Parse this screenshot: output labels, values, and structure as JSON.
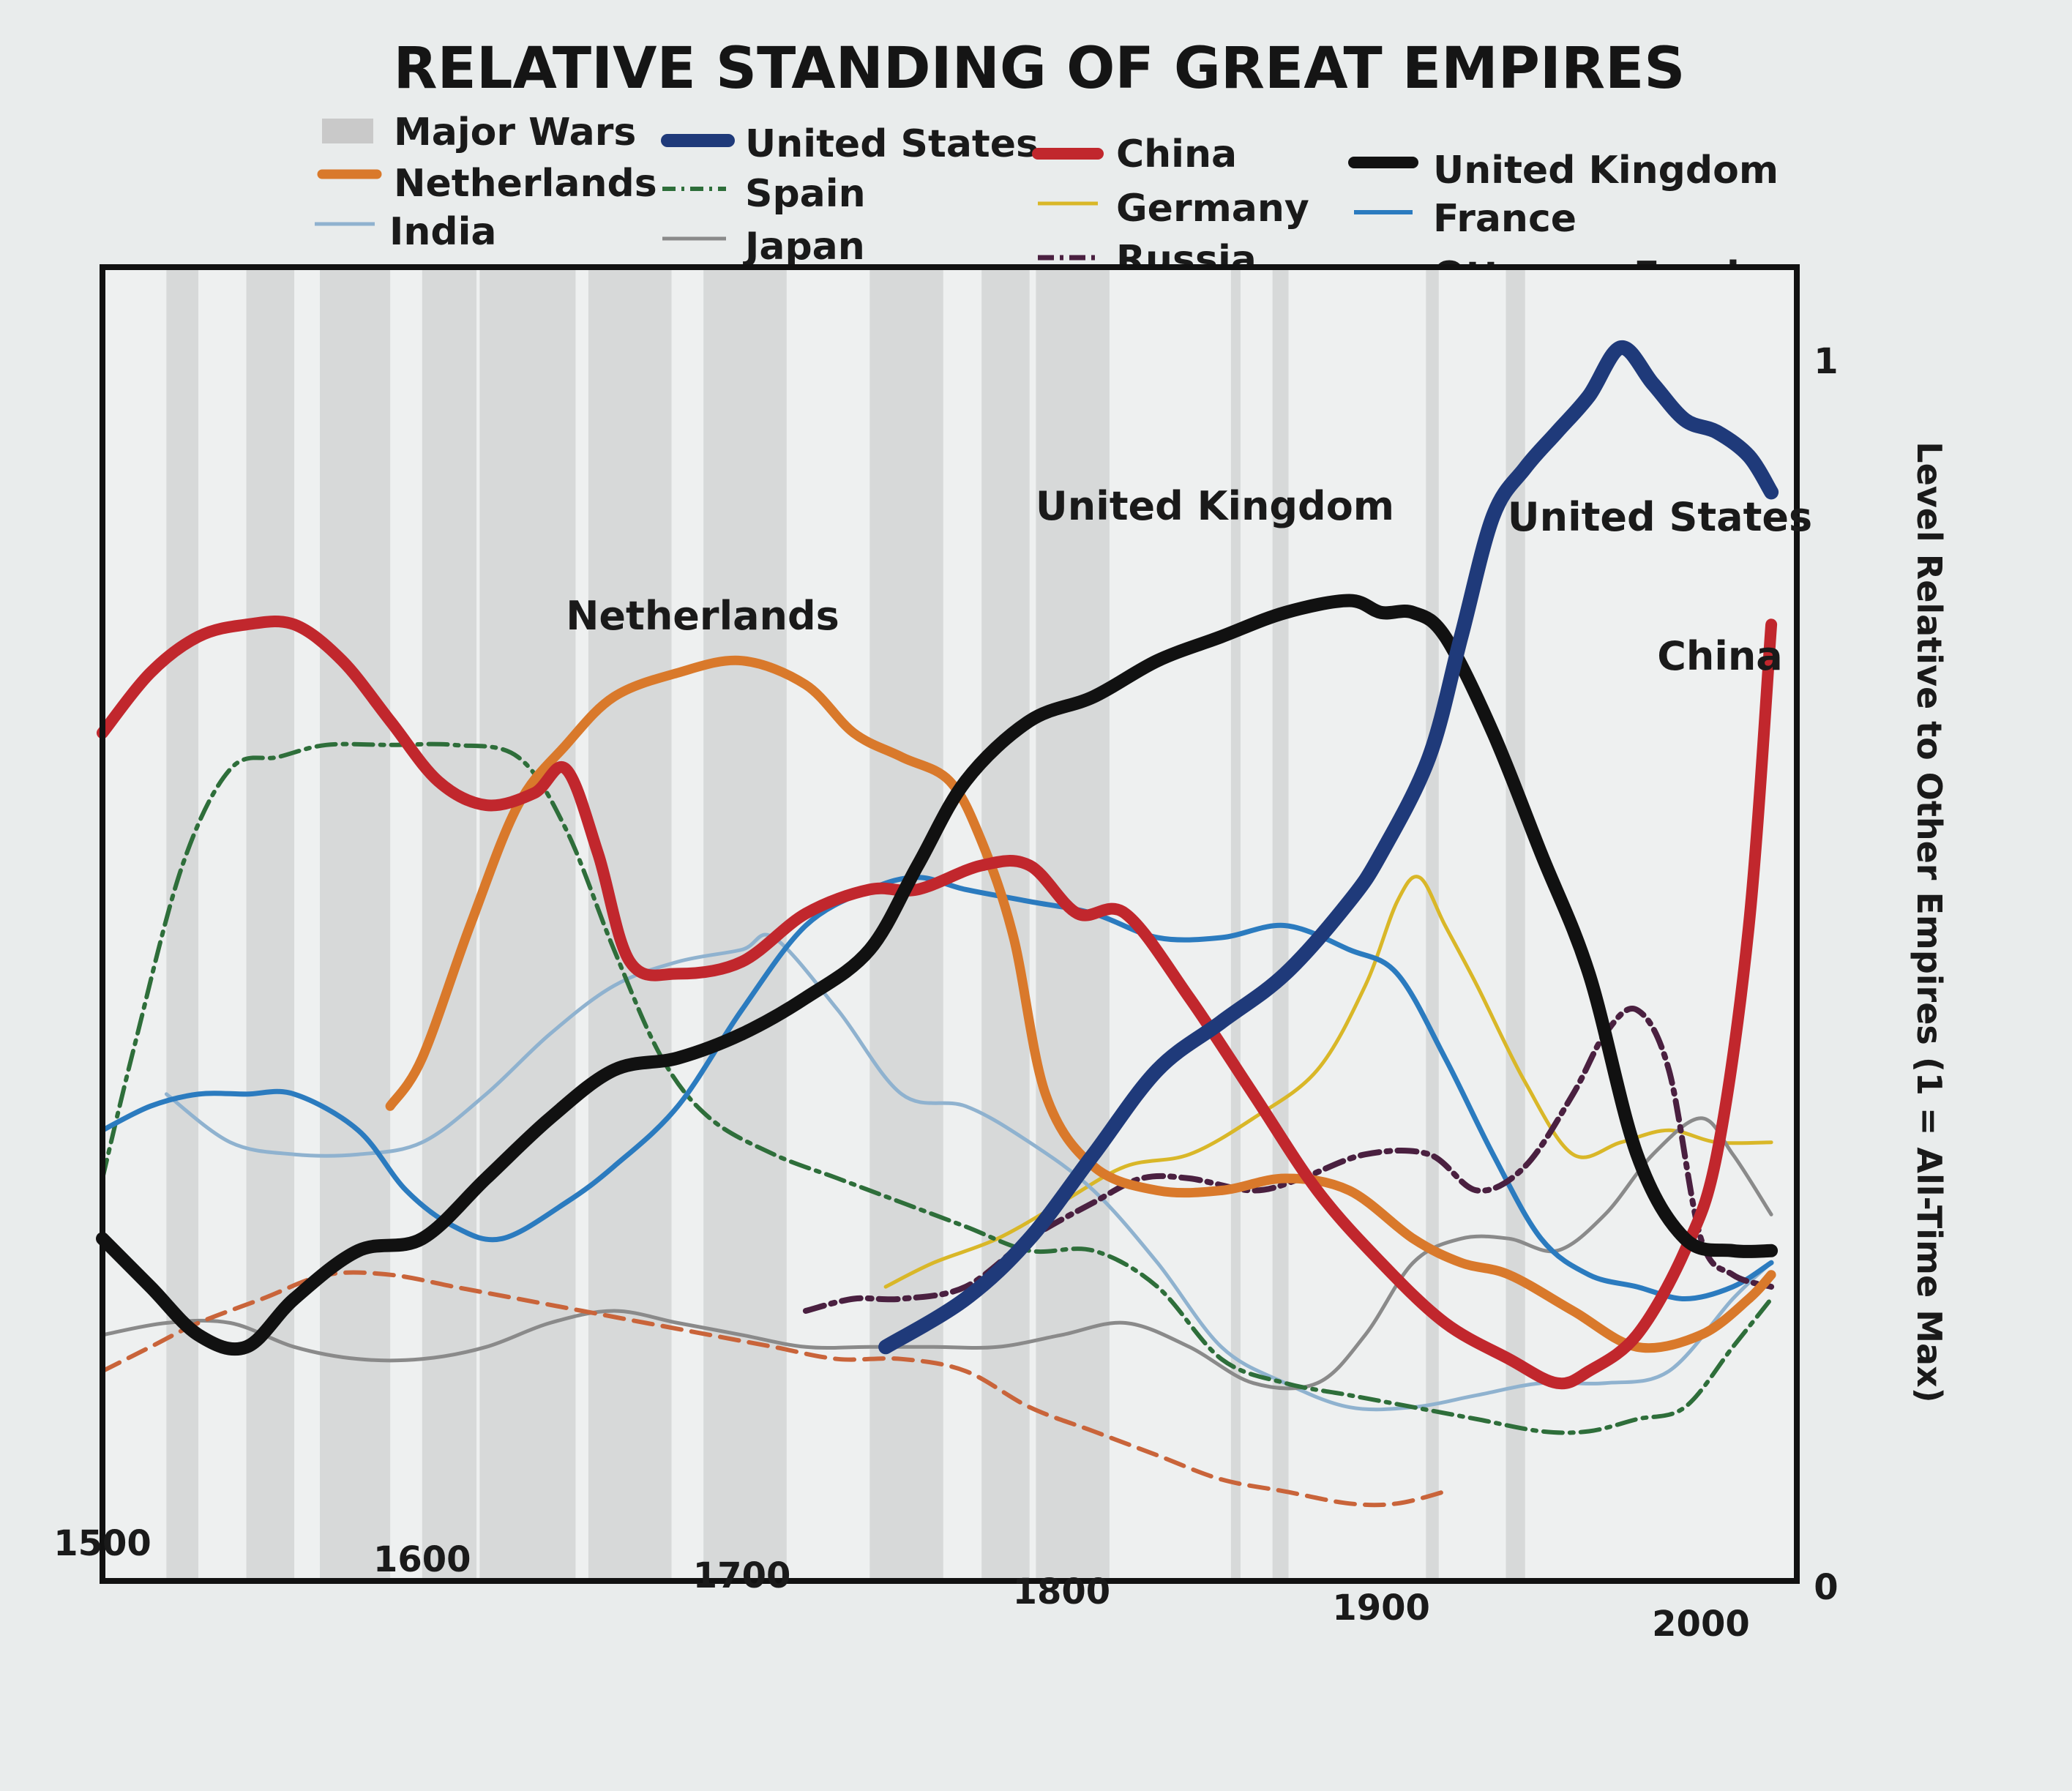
{
  "chart_data": {
    "type": "line",
    "title": "RELATIVE STANDING OF GREAT EMPIRES",
    "ylabel": "Level Relative to Other Empires (1 = All-Time Max)",
    "xlim": [
      1500,
      2030
    ],
    "ylim": [
      0,
      1
    ],
    "x_ticks": [
      "1500",
      "1600",
      "1700",
      "1800",
      "1900",
      "2000"
    ],
    "y_ticks": [
      "0",
      "1"
    ],
    "legend": {
      "position": "top",
      "entries": [
        "Major Wars",
        "United States",
        "China",
        "United Kingdom",
        "Netherlands",
        "Spain",
        "Germany",
        "France",
        "India",
        "Japan",
        "Russia",
        "Ottoman Empire"
      ]
    },
    "major_wars": [
      [
        1520,
        1530
      ],
      [
        1545,
        1560
      ],
      [
        1568,
        1590
      ],
      [
        1600,
        1617
      ],
      [
        1618,
        1648
      ],
      [
        1652,
        1678
      ],
      [
        1688,
        1714
      ],
      [
        1740,
        1763
      ],
      [
        1775,
        1790
      ],
      [
        1792,
        1815
      ],
      [
        1853,
        1856
      ],
      [
        1866,
        1871
      ],
      [
        1914,
        1918
      ],
      [
        1939,
        1945
      ]
    ],
    "annotations": [
      "Netherlands",
      "United Kingdom",
      "United States",
      "China"
    ],
    "series": [
      {
        "name": "United States",
        "color": "#1f3a7a",
        "dash": "solid",
        "width": 20,
        "x": [
          1745,
          1770,
          1790,
          1810,
          1830,
          1850,
          1870,
          1890,
          1900,
          1915,
          1925,
          1935,
          1945,
          1955,
          1965,
          1975,
          1985,
          1995,
          2005,
          2015,
          2022
        ],
        "y": [
          0.17,
          0.21,
          0.26,
          0.33,
          0.4,
          0.44,
          0.48,
          0.54,
          0.58,
          0.66,
          0.76,
          0.86,
          0.9,
          0.93,
          0.96,
          1.0,
          0.97,
          0.94,
          0.93,
          0.91,
          0.88
        ]
      },
      {
        "name": "China",
        "color": "#c1272d",
        "dash": "solid",
        "width": 16,
        "x": [
          1500,
          1515,
          1530,
          1545,
          1560,
          1575,
          1590,
          1605,
          1620,
          1635,
          1645,
          1655,
          1665,
          1680,
          1700,
          1720,
          1740,
          1755,
          1775,
          1790,
          1805,
          1820,
          1840,
          1860,
          1880,
          1900,
          1920,
          1940,
          1955,
          1965,
          1980,
          1995,
          2005,
          2015,
          2022
        ],
        "y": [
          0.68,
          0.73,
          0.76,
          0.77,
          0.77,
          0.74,
          0.69,
          0.64,
          0.62,
          0.63,
          0.65,
          0.58,
          0.49,
          0.48,
          0.49,
          0.53,
          0.55,
          0.55,
          0.57,
          0.57,
          0.53,
          0.53,
          0.46,
          0.38,
          0.3,
          0.24,
          0.19,
          0.16,
          0.14,
          0.15,
          0.18,
          0.25,
          0.33,
          0.52,
          0.77
        ]
      },
      {
        "name": "United Kingdom",
        "color": "#111111",
        "dash": "solid",
        "width": 18,
        "x": [
          1500,
          1515,
          1530,
          1545,
          1560,
          1580,
          1600,
          1620,
          1640,
          1660,
          1680,
          1700,
          1720,
          1740,
          1755,
          1770,
          1790,
          1810,
          1830,
          1850,
          1870,
          1890,
          1900,
          1910,
          1920,
          1935,
          1950,
          1965,
          1980,
          1995,
          2010,
          2022
        ],
        "y": [
          0.26,
          0.22,
          0.18,
          0.17,
          0.21,
          0.25,
          0.26,
          0.31,
          0.36,
          0.4,
          0.41,
          0.43,
          0.46,
          0.5,
          0.57,
          0.64,
          0.69,
          0.71,
          0.74,
          0.76,
          0.78,
          0.79,
          0.78,
          0.78,
          0.76,
          0.68,
          0.58,
          0.48,
          0.33,
          0.26,
          0.25,
          0.25
        ]
      },
      {
        "name": "Netherlands",
        "color": "#d9792b",
        "dash": "solid",
        "width": 13,
        "x": [
          1590,
          1600,
          1615,
          1630,
          1645,
          1660,
          1680,
          1700,
          1720,
          1735,
          1750,
          1765,
          1775,
          1785,
          1795,
          1810,
          1830,
          1850,
          1870,
          1890,
          1910,
          1925,
          1940,
          1960,
          1980,
          2000,
          2015,
          2022
        ],
        "y": [
          0.37,
          0.41,
          0.52,
          0.62,
          0.67,
          0.71,
          0.73,
          0.74,
          0.72,
          0.68,
          0.66,
          0.64,
          0.59,
          0.51,
          0.38,
          0.32,
          0.3,
          0.3,
          0.31,
          0.3,
          0.26,
          0.24,
          0.23,
          0.2,
          0.17,
          0.18,
          0.21,
          0.23
        ]
      },
      {
        "name": "Spain",
        "color": "#2e6e3a",
        "dash": "dashdot",
        "width": 6,
        "x": [
          1500,
          1510,
          1525,
          1540,
          1555,
          1570,
          1590,
          1610,
          1630,
          1645,
          1660,
          1675,
          1690,
          1710,
          1730,
          1750,
          1770,
          1790,
          1810,
          1830,
          1850,
          1870,
          1890,
          1910,
          1930,
          1950,
          1965,
          1980,
          1995,
          2010,
          2022
        ],
        "y": [
          0.31,
          0.42,
          0.57,
          0.65,
          0.66,
          0.67,
          0.67,
          0.67,
          0.66,
          0.6,
          0.5,
          0.41,
          0.36,
          0.33,
          0.31,
          0.29,
          0.27,
          0.25,
          0.25,
          0.22,
          0.16,
          0.14,
          0.13,
          0.12,
          0.11,
          0.1,
          0.1,
          0.11,
          0.12,
          0.17,
          0.21
        ]
      },
      {
        "name": "Germany",
        "color": "#d9b728",
        "dash": "solid",
        "width": 5,
        "x": [
          1745,
          1760,
          1780,
          1800,
          1820,
          1840,
          1860,
          1880,
          1895,
          1905,
          1912,
          1920,
          1930,
          1945,
          1960,
          1975,
          1990,
          2005,
          2022
        ],
        "y": [
          0.22,
          0.24,
          0.26,
          0.29,
          0.32,
          0.33,
          0.36,
          0.4,
          0.47,
          0.54,
          0.56,
          0.52,
          0.47,
          0.39,
          0.33,
          0.34,
          0.35,
          0.34,
          0.34
        ]
      },
      {
        "name": "France",
        "color": "#2b7bbf",
        "dash": "solid",
        "width": 7,
        "x": [
          1500,
          1515,
          1530,
          1545,
          1560,
          1580,
          1595,
          1610,
          1625,
          1645,
          1660,
          1680,
          1700,
          1720,
          1740,
          1755,
          1770,
          1790,
          1810,
          1830,
          1850,
          1870,
          1890,
          1905,
          1920,
          1935,
          1950,
          1965,
          1980,
          1995,
          2010,
          2022
        ],
        "y": [
          0.35,
          0.37,
          0.38,
          0.38,
          0.38,
          0.35,
          0.3,
          0.27,
          0.26,
          0.29,
          0.32,
          0.37,
          0.45,
          0.52,
          0.55,
          0.56,
          0.55,
          0.54,
          0.53,
          0.51,
          0.51,
          0.52,
          0.5,
          0.48,
          0.41,
          0.33,
          0.26,
          0.23,
          0.22,
          0.21,
          0.22,
          0.24
        ]
      },
      {
        "name": "India",
        "color": "#8fb2cf",
        "dash": "solid",
        "width": 5,
        "x": [
          1520,
          1540,
          1560,
          1580,
          1600,
          1620,
          1640,
          1660,
          1680,
          1700,
          1710,
          1730,
          1750,
          1770,
          1790,
          1810,
          1830,
          1850,
          1870,
          1890,
          1910,
          1930,
          1950,
          1970,
          1990,
          2010,
          2022
        ],
        "y": [
          0.38,
          0.34,
          0.33,
          0.33,
          0.34,
          0.38,
          0.43,
          0.47,
          0.49,
          0.5,
          0.51,
          0.45,
          0.38,
          0.37,
          0.34,
          0.3,
          0.24,
          0.17,
          0.14,
          0.12,
          0.12,
          0.13,
          0.14,
          0.14,
          0.15,
          0.21,
          0.24
        ]
      },
      {
        "name": "Japan",
        "color": "#8a8a8a",
        "dash": "solid",
        "width": 5,
        "x": [
          1500,
          1520,
          1540,
          1560,
          1580,
          1600,
          1620,
          1640,
          1660,
          1680,
          1700,
          1720,
          1740,
          1760,
          1780,
          1800,
          1820,
          1840,
          1860,
          1880,
          1895,
          1910,
          1925,
          1940,
          1955,
          1970,
          1985,
          2000,
          2010,
          2022
        ],
        "y": [
          0.18,
          0.19,
          0.19,
          0.17,
          0.16,
          0.16,
          0.17,
          0.19,
          0.2,
          0.19,
          0.18,
          0.17,
          0.17,
          0.17,
          0.17,
          0.18,
          0.19,
          0.17,
          0.14,
          0.14,
          0.18,
          0.24,
          0.26,
          0.26,
          0.25,
          0.28,
          0.33,
          0.36,
          0.33,
          0.28
        ]
      },
      {
        "name": "Russia",
        "color": "#4a2040",
        "dash": "dashdot",
        "width": 8,
        "x": [
          1720,
          1735,
          1750,
          1770,
          1790,
          1810,
          1825,
          1840,
          1860,
          1875,
          1895,
          1915,
          1930,
          1945,
          1960,
          1970,
          1980,
          1990,
          2000,
          2010,
          2022
        ],
        "y": [
          0.2,
          0.21,
          0.21,
          0.22,
          0.26,
          0.29,
          0.31,
          0.31,
          0.3,
          0.31,
          0.33,
          0.33,
          0.3,
          0.32,
          0.38,
          0.43,
          0.45,
          0.4,
          0.26,
          0.23,
          0.22
        ]
      },
      {
        "name": "Ottoman Empire",
        "color": "#c9643a",
        "dash": "dashed",
        "width": 6,
        "x": [
          1500,
          1515,
          1530,
          1550,
          1570,
          1590,
          1610,
          1630,
          1650,
          1670,
          1690,
          1710,
          1730,
          1750,
          1770,
          1790,
          1810,
          1830,
          1850,
          1870,
          1890,
          1905,
          1920
        ],
        "y": [
          0.15,
          0.17,
          0.19,
          0.21,
          0.23,
          0.23,
          0.22,
          0.21,
          0.2,
          0.19,
          0.18,
          0.17,
          0.16,
          0.16,
          0.15,
          0.12,
          0.1,
          0.08,
          0.06,
          0.05,
          0.04,
          0.04,
          0.05
        ]
      }
    ]
  }
}
